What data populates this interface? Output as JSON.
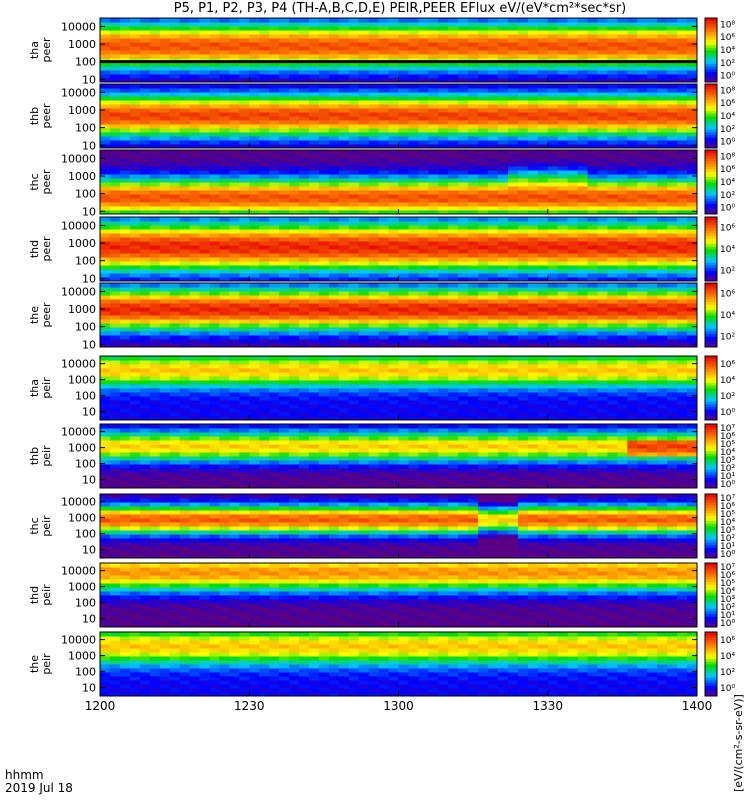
{
  "title": "P5, P1, P2, P3, P4 (TH-A,B,C,D,E) PEIR,PEER EFlux eV/(eV*cm²*sec*sr)",
  "footer": {
    "time_format": "hhmm",
    "date": "2019 Jul 18"
  },
  "colorbar_unit": "[eV/(cm²-s-sr-eV)]",
  "chart_data": [
    {
      "type": "heatmap",
      "panel": "tha-peer",
      "ylabel": [
        "tha",
        "peer"
      ],
      "yscale": "log",
      "ylim": [
        7,
        30000
      ],
      "yticks": [
        "10000",
        "1000",
        "100",
        "10"
      ],
      "cbar_ticks": [
        "10⁸",
        "10⁶",
        "10⁴",
        "10²",
        "10⁰"
      ],
      "cbar_range": [
        0,
        8
      ],
      "xlim": [
        "1200",
        "1400"
      ],
      "xticks": [
        "1200",
        "1230",
        "1300",
        "1330",
        "1400"
      ],
      "profile": {
        "peak_log_energy": 2.9,
        "width": 1.3,
        "max_level": 7.0,
        "black_band_below": 100
      }
    },
    {
      "type": "heatmap",
      "panel": "thb-peer",
      "ylabel": [
        "thb",
        "peer"
      ],
      "yscale": "log",
      "ylim": [
        7,
        30000
      ],
      "yticks": [
        "10000",
        "1000",
        "100",
        "10"
      ],
      "cbar_ticks": [
        "10⁸",
        "10⁶",
        "10⁴",
        "10²",
        "10⁰"
      ],
      "cbar_range": [
        0,
        8
      ],
      "xlim": [
        "1200",
        "1400"
      ],
      "xticks": [
        "1200",
        "1230",
        "1300",
        "1330",
        "1400"
      ],
      "profile": {
        "peak_log_energy": 2.7,
        "width": 1.2,
        "max_level": 7.2,
        "gap_at": "1238"
      }
    },
    {
      "type": "heatmap",
      "panel": "thc-peer",
      "ylabel": [
        "thc",
        "peer"
      ],
      "yscale": "log",
      "ylim": [
        7,
        30000
      ],
      "yticks": [
        "10000",
        "1000",
        "100",
        "10"
      ],
      "cbar_ticks": [
        "10⁸",
        "10⁶",
        "10⁴",
        "10²",
        "10⁰"
      ],
      "cbar_range": [
        0,
        8
      ],
      "xlim": [
        "1200",
        "1400"
      ],
      "xticks": [
        "1200",
        "1230",
        "1300",
        "1330",
        "1400"
      ],
      "profile": {
        "peak_log_energy": 1.8,
        "width": 1.1,
        "max_level": 7.0,
        "hump_at": "1330"
      }
    },
    {
      "type": "heatmap",
      "panel": "thd-peer",
      "ylabel": [
        "thd",
        "peer"
      ],
      "yscale": "log",
      "ylim": [
        7,
        30000
      ],
      "yticks": [
        "10000",
        "1000",
        "100",
        "10"
      ],
      "cbar_ticks": [
        "10⁶",
        "10⁴",
        "10²"
      ],
      "cbar_range": [
        0,
        7
      ],
      "xlim": [
        "1200",
        "1400"
      ],
      "xticks": [
        "1200",
        "1230",
        "1300",
        "1330",
        "1400"
      ],
      "profile": {
        "peak_log_energy": 2.8,
        "width": 1.4,
        "max_level": 6.6
      }
    },
    {
      "type": "heatmap",
      "panel": "the-peer",
      "ylabel": [
        "the",
        "peer"
      ],
      "yscale": "log",
      "ylim": [
        7,
        30000
      ],
      "yticks": [
        "10000",
        "1000",
        "100",
        "10"
      ],
      "cbar_ticks": [
        "10⁶",
        "10⁴",
        "10²"
      ],
      "cbar_range": [
        0,
        7
      ],
      "xlim": [
        "1200",
        "1400"
      ],
      "xticks": [
        "1200",
        "1230",
        "1300",
        "1330",
        "1400"
      ],
      "profile": {
        "peak_log_energy": 3.0,
        "width": 1.2,
        "max_level": 6.6
      }
    },
    {
      "type": "heatmap",
      "panel": "tha-peir",
      "ylabel": [
        "tha",
        "peir"
      ],
      "yscale": "log",
      "ylim": [
        3,
        30000
      ],
      "yticks": [
        "10000",
        "1000",
        "100",
        "10"
      ],
      "cbar_ticks": [
        "10⁶",
        "10⁴",
        "10²",
        "10⁰"
      ],
      "cbar_range": [
        -1,
        7
      ],
      "xlim": [
        "1200",
        "1400"
      ],
      "xticks": [
        "1200",
        "1230",
        "1300",
        "1330",
        "1400"
      ],
      "profile": {
        "peak_log_energy": 3.6,
        "width": 1.0,
        "max_level": 4.6
      }
    },
    {
      "type": "heatmap",
      "panel": "thb-peir",
      "ylabel": [
        "thb",
        "peir"
      ],
      "yscale": "log",
      "ylim": [
        3,
        30000
      ],
      "yticks": [
        "10000",
        "1000",
        "100",
        "10"
      ],
      "cbar_ticks": [
        "10⁷",
        "10⁶",
        "10⁵",
        "10⁴",
        "10³",
        "10²",
        "10¹",
        "10⁰"
      ],
      "cbar_range": [
        0,
        7
      ],
      "xlim": [
        "1200",
        "1400"
      ],
      "xticks": [
        "1200",
        "1230",
        "1300",
        "1330",
        "1400"
      ],
      "profile": {
        "peak_log_energy": 3.1,
        "width": 1.0,
        "max_level": 4.8,
        "enhancement_from": "1345"
      }
    },
    {
      "type": "heatmap",
      "panel": "thc-peir",
      "ylabel": [
        "thc",
        "peir"
      ],
      "yscale": "log",
      "ylim": [
        3,
        30000
      ],
      "yticks": [
        "10000",
        "1000",
        "100",
        "10"
      ],
      "cbar_ticks": [
        "10⁷",
        "10⁶",
        "10⁵",
        "10⁴",
        "10³",
        "10²",
        "10¹",
        "10⁰"
      ],
      "cbar_range": [
        0,
        7
      ],
      "xlim": [
        "1200",
        "1400"
      ],
      "xticks": [
        "1200",
        "1230",
        "1300",
        "1330",
        "1400"
      ],
      "profile": {
        "peak_log_energy": 2.9,
        "width": 0.9,
        "max_level": 6.0,
        "dip_at": "1320"
      }
    },
    {
      "type": "heatmap",
      "panel": "thd-peir",
      "ylabel": [
        "thd",
        "peir"
      ],
      "yscale": "log",
      "ylim": [
        3,
        30000
      ],
      "yticks": [
        "10000",
        "1000",
        "100",
        "10"
      ],
      "cbar_ticks": [
        "10⁷",
        "10⁶",
        "10⁵",
        "10⁴",
        "10³",
        "10²",
        "10¹",
        "10⁰"
      ],
      "cbar_range": [
        0,
        7
      ],
      "xlim": [
        "1200",
        "1400"
      ],
      "xticks": [
        "1200",
        "1230",
        "1300",
        "1330",
        "1400"
      ],
      "profile": {
        "peak_log_energy": 3.9,
        "width": 1.2,
        "max_level": 5.4,
        "noisy_below": 30
      }
    },
    {
      "type": "heatmap",
      "panel": "the-peir",
      "ylabel": [
        "the",
        "peir"
      ],
      "yscale": "log",
      "ylim": [
        3,
        30000
      ],
      "yticks": [
        "10000",
        "1000",
        "100",
        "10"
      ],
      "cbar_ticks": [
        "10⁶",
        "10⁴",
        "10²",
        "10⁰"
      ],
      "cbar_range": [
        -1,
        7
      ],
      "xlim": [
        "1200",
        "1400"
      ],
      "xticks": [
        "1200",
        "1230",
        "1300",
        "1330",
        "1400"
      ],
      "profile": {
        "peak_log_energy": 3.6,
        "width": 1.1,
        "max_level": 4.6
      }
    }
  ]
}
